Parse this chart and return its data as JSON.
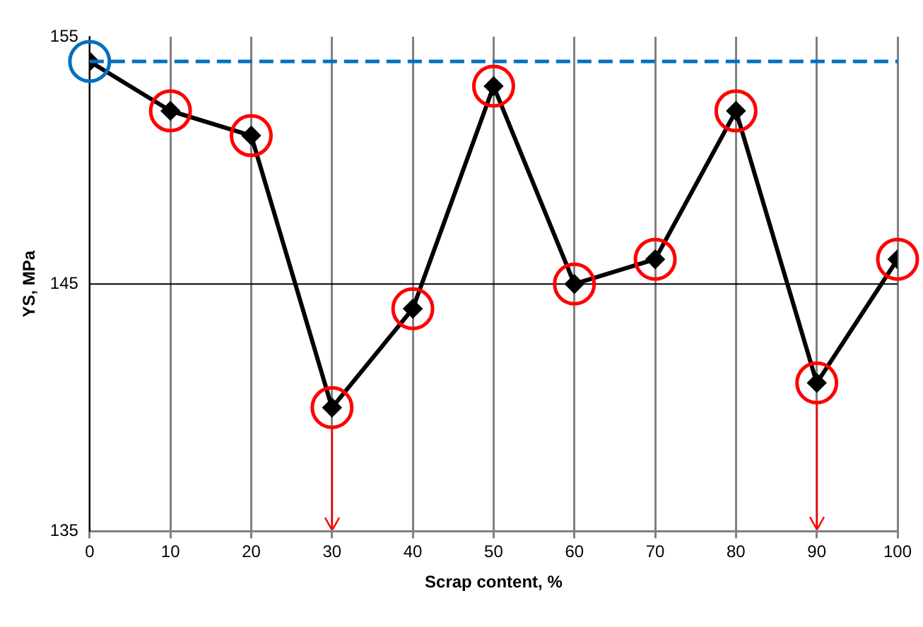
{
  "chart_data": {
    "type": "line",
    "xlabel": "Scrap content, %",
    "ylabel": "YS, MPa",
    "x": [
      0,
      10,
      20,
      30,
      40,
      50,
      60,
      70,
      80,
      90,
      100
    ],
    "series": [
      {
        "color": "#000000",
        "values": [
          154,
          152,
          151,
          140,
          144,
          153,
          145,
          146,
          152,
          141,
          146
        ]
      }
    ],
    "xlim": [
      0,
      100
    ],
    "xticks": [
      0,
      10,
      20,
      30,
      40,
      50,
      60,
      70,
      80,
      90,
      100
    ],
    "ylim": [
      135,
      155
    ],
    "yticks": [
      135,
      145,
      155
    ],
    "ref_lines": [
      {
        "axis": "y",
        "value": 154,
        "color": "#0070c0",
        "line_style": "dashed"
      },
      {
        "axis": "y",
        "value": 145,
        "color": "#000000",
        "line_style": "solid"
      }
    ],
    "grid": "x",
    "legend": false,
    "marker": "diamond",
    "line_style": "solid"
  }
}
